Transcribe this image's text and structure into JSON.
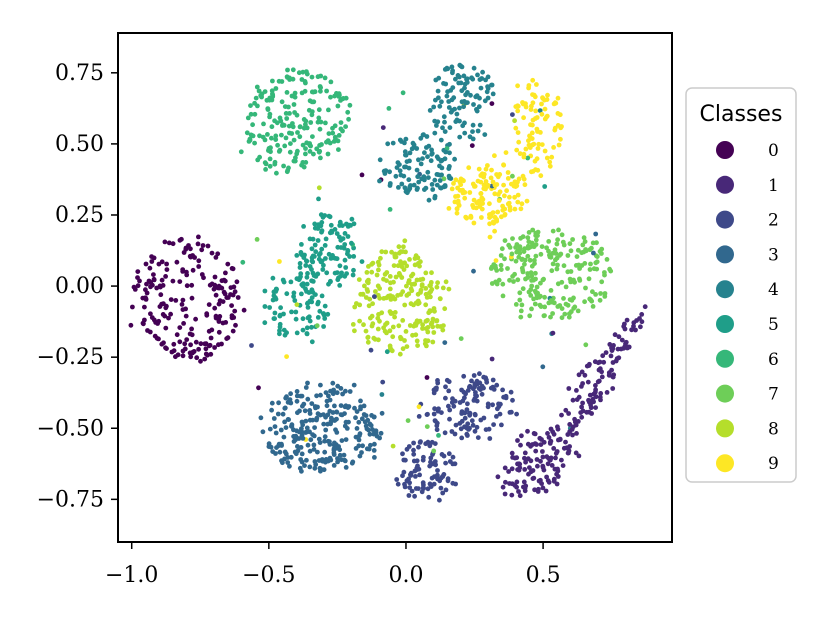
{
  "chart_data": {
    "type": "scatter",
    "xlim": [
      -1.05,
      0.97
    ],
    "ylim": [
      -0.9,
      0.89
    ],
    "x_ticks": [
      -1.0,
      -0.5,
      0.0,
      0.5
    ],
    "x_tick_labels": [
      "−1.0",
      "−0.5",
      "0.0",
      "0.5"
    ],
    "y_ticks": [
      0.75,
      0.5,
      0.25,
      0.0,
      -0.25,
      -0.5,
      -0.75
    ],
    "y_tick_labels": [
      "0.75",
      "0.50",
      "0.25",
      "0.00",
      "−0.25",
      "−0.50",
      "−0.75"
    ],
    "grid": false,
    "legend": {
      "title": "Classes",
      "placement": "right",
      "labels": [
        "0",
        "1",
        "2",
        "3",
        "4",
        "5",
        "6",
        "7",
        "8",
        "9"
      ]
    },
    "colors": [
      "#440154",
      "#482878",
      "#3e4989",
      "#31688e",
      "#26828e",
      "#1f9e89",
      "#35b779",
      "#6ece58",
      "#b5de2b",
      "#fde725"
    ],
    "series": [
      {
        "name": "0",
        "clusters": [
          {
            "cx": -0.8,
            "cy": -0.05,
            "rx": 0.2,
            "ry": 0.22,
            "angle": 0,
            "n": 210
          }
        ]
      },
      {
        "name": "1",
        "clusters": [
          {
            "cx": 0.72,
            "cy": -0.3,
            "rx": 0.26,
            "ry": 0.06,
            "angle": 58,
            "n": 110
          },
          {
            "cx": 0.48,
            "cy": -0.62,
            "rx": 0.16,
            "ry": 0.1,
            "angle": 40,
            "n": 120
          }
        ]
      },
      {
        "name": "2",
        "clusters": [
          {
            "cx": 0.23,
            "cy": -0.42,
            "rx": 0.17,
            "ry": 0.11,
            "angle": 0,
            "n": 130
          },
          {
            "cx": 0.08,
            "cy": -0.65,
            "rx": 0.1,
            "ry": 0.11,
            "angle": 0,
            "n": 90
          }
        ]
      },
      {
        "name": "3",
        "clusters": [
          {
            "cx": -0.3,
            "cy": -0.5,
            "rx": 0.22,
            "ry": 0.16,
            "angle": 0,
            "n": 260
          }
        ]
      },
      {
        "name": "4",
        "clusters": [
          {
            "cx": 0.2,
            "cy": 0.65,
            "rx": 0.12,
            "ry": 0.13,
            "angle": 0,
            "n": 100
          },
          {
            "cx": 0.05,
            "cy": 0.42,
            "rx": 0.14,
            "ry": 0.12,
            "angle": 0,
            "n": 110
          }
        ]
      },
      {
        "name": "5",
        "clusters": [
          {
            "cx": -0.28,
            "cy": 0.13,
            "rx": 0.11,
            "ry": 0.13,
            "angle": 0,
            "n": 110
          },
          {
            "cx": -0.4,
            "cy": -0.07,
            "rx": 0.11,
            "ry": 0.13,
            "angle": 0,
            "n": 90
          }
        ]
      },
      {
        "name": "6",
        "clusters": [
          {
            "cx": -0.4,
            "cy": 0.58,
            "rx": 0.2,
            "ry": 0.17,
            "angle": 25,
            "n": 210
          }
        ]
      },
      {
        "name": "7",
        "clusters": [
          {
            "cx": 0.53,
            "cy": 0.04,
            "rx": 0.22,
            "ry": 0.16,
            "angle": 0,
            "n": 230
          }
        ]
      },
      {
        "name": "8",
        "clusters": [
          {
            "cx": -0.02,
            "cy": -0.05,
            "rx": 0.17,
            "ry": 0.19,
            "angle": 0,
            "n": 220
          }
        ]
      },
      {
        "name": "9",
        "clusters": [
          {
            "cx": 0.3,
            "cy": 0.32,
            "rx": 0.14,
            "ry": 0.11,
            "angle": 0,
            "n": 130
          },
          {
            "cx": 0.47,
            "cy": 0.55,
            "rx": 0.1,
            "ry": 0.17,
            "angle": 0,
            "n": 90
          }
        ]
      }
    ]
  }
}
